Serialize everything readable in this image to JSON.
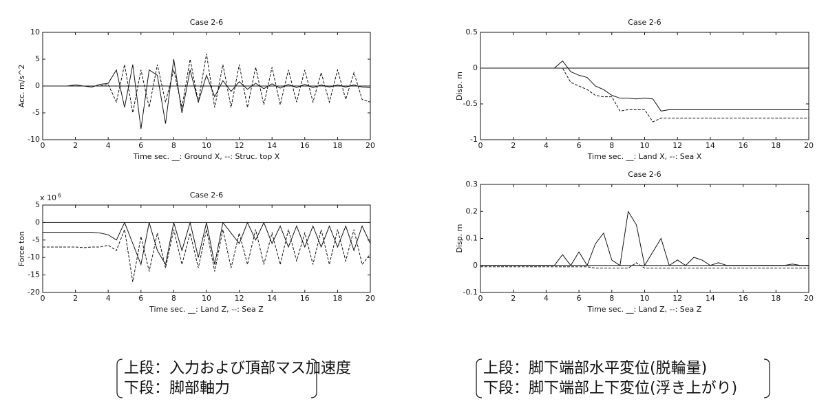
{
  "chart_data": [
    {
      "type": "line",
      "title": "Case 2-6",
      "y_label": "Acc. m/s^2",
      "x_label": "Time sec. __: Ground X, --: Struc. top X",
      "x": [
        0,
        0.5,
        1,
        1.5,
        2,
        2.5,
        3,
        3.5,
        4,
        4.5,
        5,
        5.5,
        6,
        6.5,
        7,
        7.5,
        8,
        8.5,
        9,
        9.5,
        10,
        10.5,
        11,
        11.5,
        12,
        12.5,
        13,
        13.5,
        14,
        14.5,
        15,
        15.5,
        16,
        16.5,
        17,
        17.5,
        18,
        18.5,
        19,
        19.5,
        20
      ],
      "xlim": [
        0,
        20
      ],
      "xticks": [
        0,
        2,
        4,
        6,
        8,
        10,
        12,
        14,
        16,
        18,
        20
      ],
      "ylim": [
        -10,
        10
      ],
      "yticks": [
        -10,
        -5,
        0,
        5,
        10
      ],
      "series": [
        {
          "color": "#111111",
          "style": "solid",
          "values": [
            0,
            0,
            0,
            0,
            0.2,
            0,
            -0.2,
            0.3,
            0.5,
            3,
            -4,
            4,
            -8,
            3,
            2,
            -7,
            5,
            -5,
            3,
            -3,
            2,
            -2,
            1,
            -1,
            0.8,
            -0.6,
            0.5,
            -0.5,
            0.4,
            -0.4,
            0.3,
            -0.3,
            0.3,
            -0.3,
            0.2,
            -0.2,
            0.2,
            -0.2,
            0.2,
            -0.2,
            -0.3
          ]
        },
        {
          "color": "#111111",
          "style": "dashed",
          "values": [
            0,
            0,
            0,
            0,
            0,
            0,
            0,
            0,
            0.3,
            -3,
            4,
            -5,
            3,
            -4,
            4,
            -3,
            3,
            -4,
            5,
            -3,
            6,
            -4,
            4,
            -4,
            4,
            -4,
            3.5,
            -3.5,
            3.5,
            -3.5,
            3,
            -3,
            3,
            -3,
            2.5,
            -3,
            3,
            -2.5,
            2.5,
            -2.5,
            -3
          ]
        }
      ]
    },
    {
      "type": "line",
      "title": "Case 2-6",
      "y_label": "Force ton",
      "x_label": "Time sec. __: Land Z, --: Sea Z",
      "multiplier": {
        "base": "x 10",
        "exponent": "6"
      },
      "x": [
        0,
        0.5,
        1,
        1.5,
        2,
        2.5,
        3,
        3.5,
        4,
        4.5,
        5,
        5.5,
        6,
        6.5,
        7,
        7.5,
        8,
        8.5,
        9,
        9.5,
        10,
        10.5,
        11,
        11.5,
        12,
        12.5,
        13,
        13.5,
        14,
        14.5,
        15,
        15.5,
        16,
        16.5,
        17,
        17.5,
        18,
        18.5,
        19,
        19.5,
        20
      ],
      "xlim": [
        0,
        20
      ],
      "xticks": [
        0,
        2,
        4,
        6,
        8,
        10,
        12,
        14,
        16,
        18,
        20
      ],
      "ylim": [
        -20,
        5
      ],
      "yticks": [
        -20,
        -15,
        -10,
        -5,
        0,
        5
      ],
      "series": [
        {
          "color": "#111111",
          "style": "solid",
          "values": [
            -2.8,
            -2.8,
            -2.8,
            -2.8,
            -2.8,
            -2.8,
            -2.8,
            -3,
            -3.5,
            -5,
            0,
            -6,
            -12,
            0,
            -8,
            -12,
            0,
            -8,
            0,
            -10,
            0,
            -12,
            0,
            -3,
            -6,
            0,
            -5,
            0,
            -6,
            -1,
            -7,
            -1,
            -7,
            -1,
            -7,
            -1,
            -7,
            -1,
            -8,
            -1,
            -6
          ]
        },
        {
          "color": "#111111",
          "style": "dashed",
          "values": [
            -7,
            -7,
            -7,
            -7,
            -7,
            -7.2,
            -7,
            -7,
            -6.5,
            -8,
            -2,
            -17,
            -4,
            -14,
            -3,
            -13,
            -2,
            -12,
            -3,
            -13,
            -2,
            -14,
            -2,
            -13,
            -3,
            -12,
            -2,
            -12,
            -3,
            -12,
            -2,
            -11,
            -3,
            -12,
            -2,
            -12,
            -2,
            -11,
            -2,
            -12,
            -9
          ]
        }
      ]
    },
    {
      "type": "line",
      "title": "Case 2-6",
      "y_label": "Disp. m",
      "x_label": "Time sec. __: Land X, --: Sea X",
      "x": [
        0,
        0.5,
        1,
        1.5,
        2,
        2.5,
        3,
        3.5,
        4,
        4.5,
        5,
        5.5,
        6,
        6.5,
        7,
        7.5,
        8,
        8.5,
        9,
        9.5,
        10,
        10.5,
        11,
        11.5,
        12,
        12.5,
        13,
        13.5,
        14,
        14.5,
        15,
        15.5,
        16,
        16.5,
        17,
        17.5,
        18,
        18.5,
        19,
        19.5,
        20
      ],
      "xlim": [
        0,
        20
      ],
      "xticks": [
        0,
        2,
        4,
        6,
        8,
        10,
        12,
        14,
        16,
        18,
        20
      ],
      "ylim": [
        -1,
        0.5
      ],
      "yticks": [
        -1,
        -0.5,
        0,
        0.5
      ],
      "series": [
        {
          "color": "#111111",
          "style": "solid",
          "values": [
            0,
            0,
            0,
            0,
            0,
            0,
            0,
            0,
            0,
            0,
            0.1,
            -0.05,
            -0.1,
            -0.13,
            -0.25,
            -0.3,
            -0.38,
            -0.42,
            -0.42,
            -0.43,
            -0.42,
            -0.43,
            -0.6,
            -0.58,
            -0.58,
            -0.58,
            -0.58,
            -0.58,
            -0.58,
            -0.58,
            -0.58,
            -0.58,
            -0.58,
            -0.58,
            -0.58,
            -0.58,
            -0.58,
            -0.58,
            -0.58,
            -0.58,
            -0.58
          ]
        },
        {
          "color": "#111111",
          "style": "dashed",
          "values": [
            0,
            0,
            0,
            0,
            0,
            0,
            0,
            0,
            0,
            0,
            0,
            -0.2,
            -0.25,
            -0.3,
            -0.38,
            -0.4,
            -0.4,
            -0.6,
            -0.58,
            -0.58,
            -0.58,
            -0.75,
            -0.7,
            -0.7,
            -0.7,
            -0.7,
            -0.7,
            -0.7,
            -0.7,
            -0.7,
            -0.7,
            -0.7,
            -0.7,
            -0.7,
            -0.7,
            -0.7,
            -0.7,
            -0.7,
            -0.7,
            -0.7,
            -0.7
          ]
        }
      ]
    },
    {
      "type": "line",
      "title": "Case 2-6",
      "y_label": "Disp. m",
      "x_label": "Time sec. __: Land Z, --: Sea Z",
      "x": [
        0,
        0.5,
        1,
        1.5,
        2,
        2.5,
        3,
        3.5,
        4,
        4.5,
        5,
        5.5,
        6,
        6.5,
        7,
        7.5,
        8,
        8.5,
        9,
        9.5,
        10,
        10.5,
        11,
        11.5,
        12,
        12.5,
        13,
        13.5,
        14,
        14.5,
        15,
        15.5,
        16,
        16.5,
        17,
        17.5,
        18,
        18.5,
        19,
        19.5,
        20
      ],
      "xlim": [
        0,
        20
      ],
      "xticks": [
        0,
        2,
        4,
        6,
        8,
        10,
        12,
        14,
        16,
        18,
        20
      ],
      "ylim": [
        -0.1,
        0.3
      ],
      "yticks": [
        -0.1,
        0,
        0.1,
        0.2,
        0.3
      ],
      "series": [
        {
          "color": "#111111",
          "style": "solid",
          "values": [
            0,
            0,
            0,
            0,
            0,
            0,
            0,
            0,
            0,
            0,
            0.04,
            0,
            0.05,
            0,
            0.08,
            0.12,
            0.02,
            0,
            0.2,
            0.15,
            0,
            0.05,
            0.1,
            0,
            0.02,
            0,
            0.03,
            0.02,
            0,
            0.01,
            0,
            0,
            0,
            0,
            0,
            0,
            0,
            0,
            0.005,
            0,
            0
          ]
        },
        {
          "color": "#111111",
          "style": "dashed",
          "values": [
            -0.005,
            -0.005,
            -0.005,
            -0.005,
            -0.005,
            -0.005,
            -0.005,
            -0.005,
            -0.005,
            -0.005,
            -0.005,
            -0.005,
            -0.005,
            -0.005,
            -0.01,
            -0.01,
            -0.01,
            -0.01,
            -0.01,
            0.01,
            -0.01,
            -0.01,
            -0.01,
            -0.01,
            -0.01,
            -0.01,
            -0.01,
            -0.01,
            -0.01,
            -0.01,
            -0.01,
            -0.01,
            -0.01,
            -0.01,
            -0.01,
            -0.01,
            -0.01,
            -0.01,
            -0.01,
            -0.01,
            -0.01
          ]
        }
      ]
    }
  ],
  "captions": [
    {
      "lines": [
        "上段：入力および頂部マス加速度",
        "下段：脚部軸力"
      ]
    },
    {
      "lines": [
        "上段：脚下端部水平変位(脱輪量)",
        "下段：脚下端部上下変位(浮き上がり)"
      ]
    }
  ]
}
